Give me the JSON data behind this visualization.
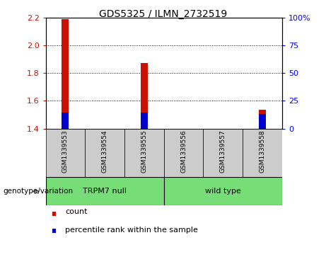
{
  "title": "GDS5325 / ILMN_2732519",
  "samples": [
    "GSM1339553",
    "GSM1339554",
    "GSM1339555",
    "GSM1339556",
    "GSM1339557",
    "GSM1339558"
  ],
  "red_bars": [
    2.19,
    1.4,
    1.875,
    1.4,
    1.4,
    1.535
  ],
  "blue_bars": [
    1.515,
    1.4,
    1.515,
    1.4,
    1.4,
    1.505
  ],
  "bar_bottom": 1.4,
  "ylim": [
    1.4,
    2.2
  ],
  "y2lim": [
    0,
    100
  ],
  "yticks": [
    1.4,
    1.6,
    1.8,
    2.0,
    2.2
  ],
  "y2ticks": [
    0,
    25,
    50,
    75,
    100
  ],
  "y2tick_labels": [
    "0",
    "25",
    "50",
    "75",
    "100%"
  ],
  "group1_label": "TRPM7 null",
  "group2_label": "wild type",
  "group1_indices": [
    0,
    1,
    2
  ],
  "group2_indices": [
    3,
    4,
    5
  ],
  "group_color": "#77dd77",
  "bar_bg_color": "#cccccc",
  "plot_bg_color": "#ffffff",
  "red_color": "#cc1100",
  "blue_color": "#0000cc",
  "bar_width": 0.18,
  "genotype_label": "genotype/variation",
  "legend_count": "count",
  "legend_percentile": "percentile rank within the sample",
  "figsize": [
    4.61,
    3.63
  ],
  "dpi": 100
}
